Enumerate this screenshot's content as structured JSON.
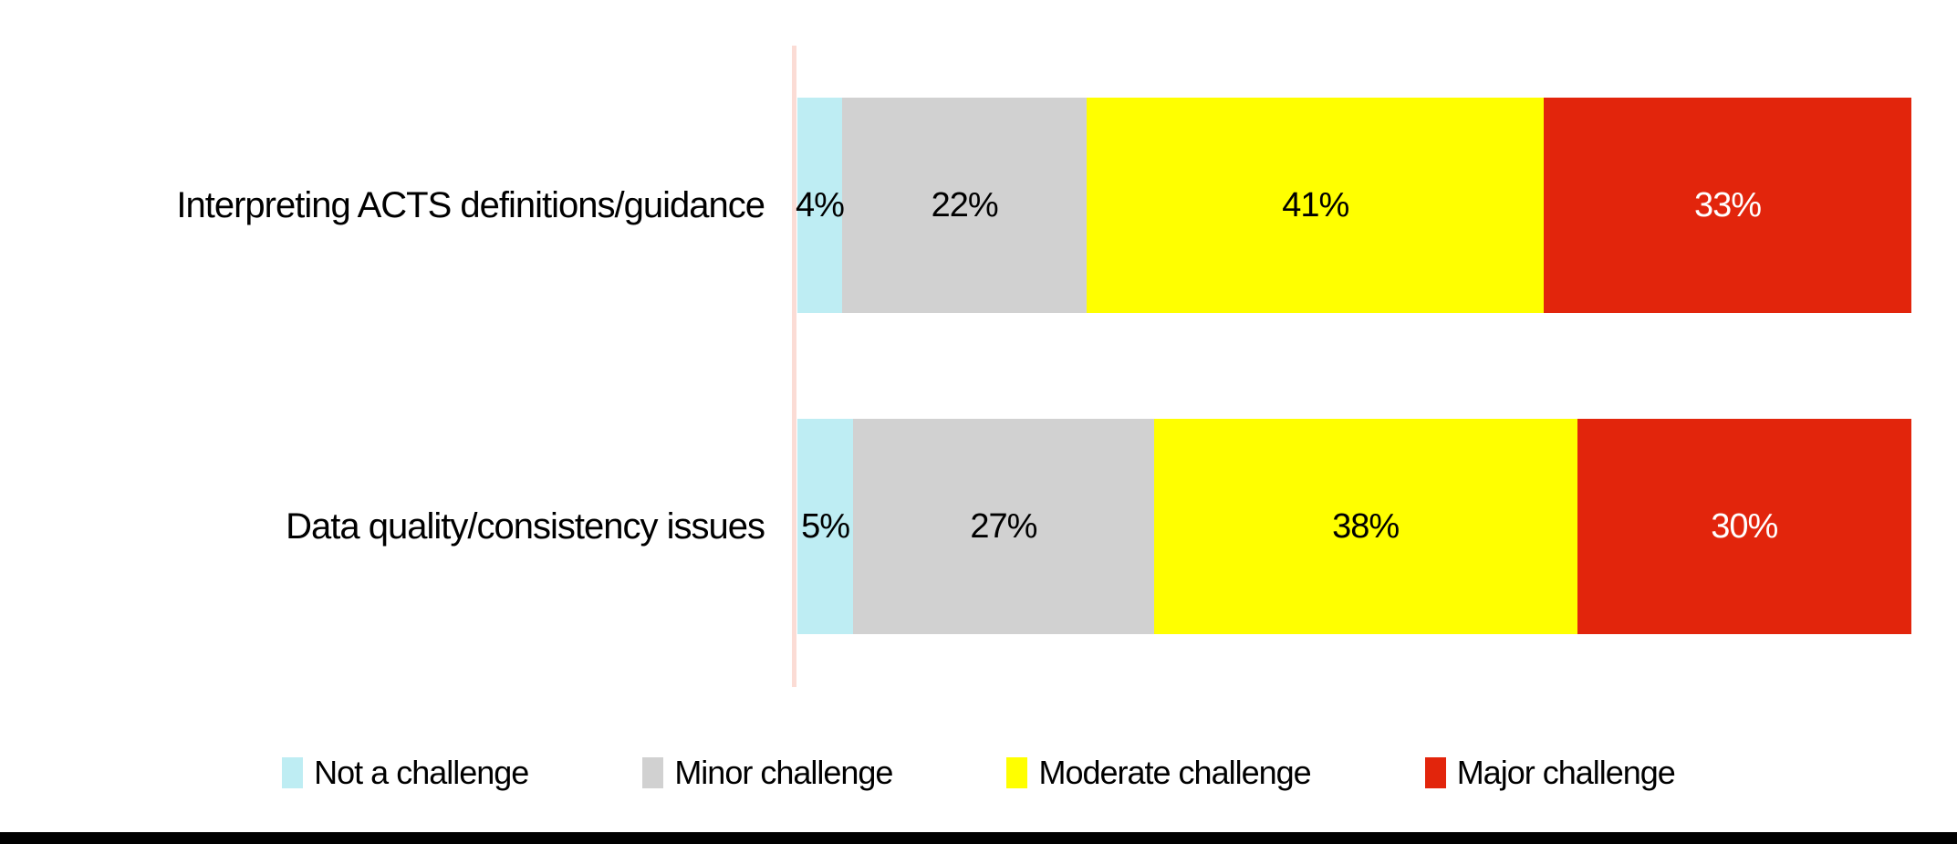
{
  "chart_data": {
    "type": "bar",
    "orientation": "horizontal",
    "stacked": true,
    "title": "",
    "xlabel": "",
    "ylabel": "",
    "xlim": [
      0,
      100
    ],
    "value_suffix": "%",
    "grid": false,
    "legend_position": "bottom",
    "categories": [
      "Interpreting ACTS definitions/guidance",
      "Data quality/consistency issues"
    ],
    "series": [
      {
        "name": "Not a challenge",
        "color": "#BEEDF3",
        "label_color": "#000000",
        "values": [
          4,
          5
        ]
      },
      {
        "name": "Minor challenge",
        "color": "#D1D1D1",
        "label_color": "#000000",
        "values": [
          22,
          27
        ]
      },
      {
        "name": "Moderate challenge",
        "color": "#FFFF00",
        "label_color": "#000000",
        "values": [
          41,
          38
        ]
      },
      {
        "name": "Major challenge",
        "color": "#E2250C",
        "label_color": "#FFFFFF",
        "values": [
          33,
          30
        ]
      }
    ],
    "axis_line_color": "#FBDCD5",
    "bottom_rule_color": "#000000"
  }
}
